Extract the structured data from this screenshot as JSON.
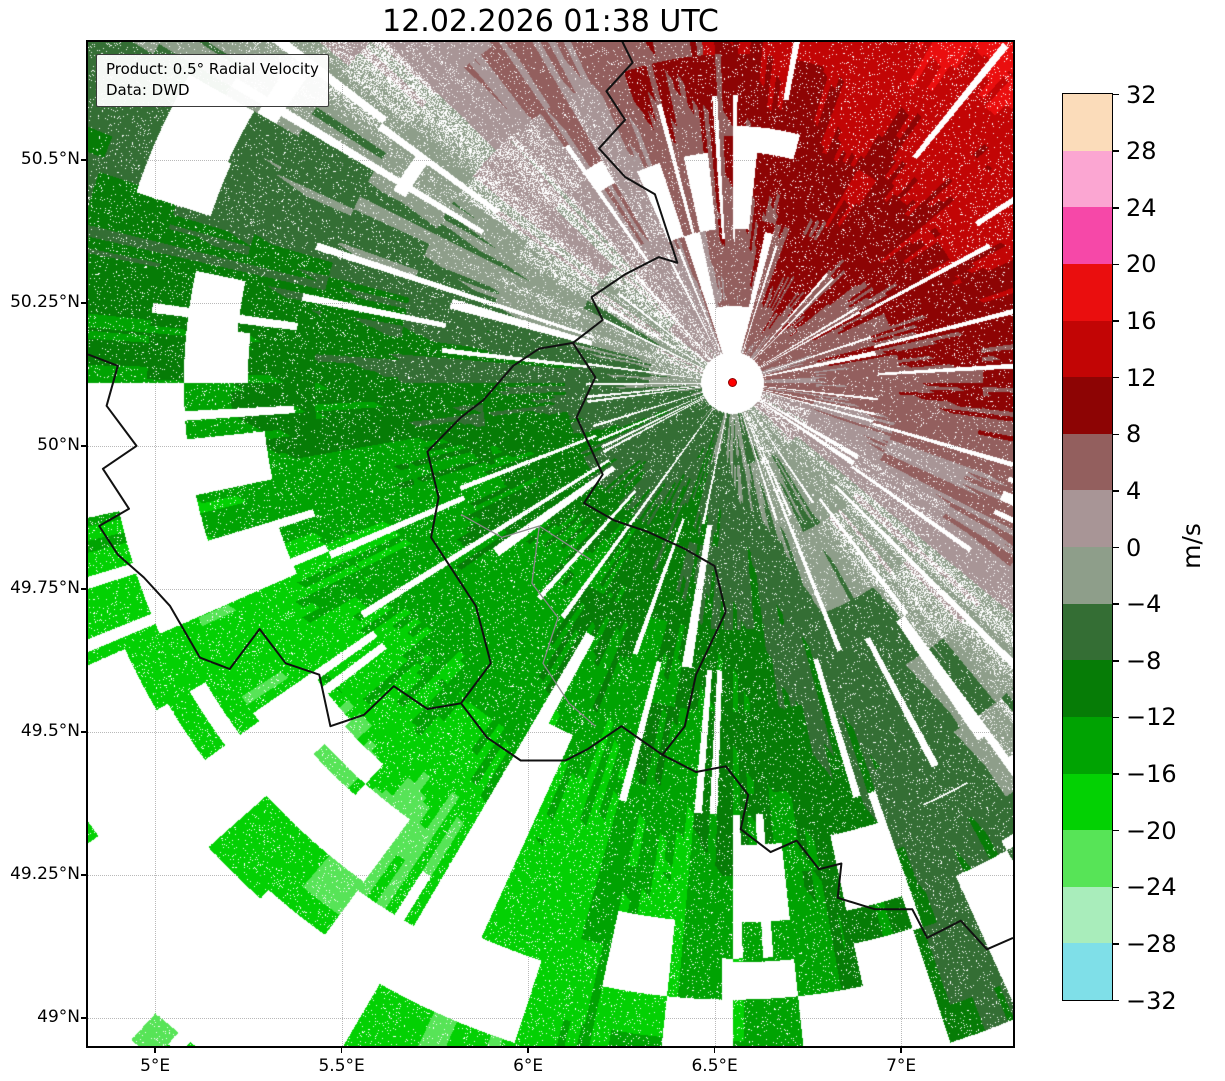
{
  "title": "12.02.2026 01:38 UTC",
  "annotation": {
    "product": "Product: 0.5° Radial Velocity",
    "source": "Data: DWD"
  },
  "map": {
    "lon_min": 4.82,
    "lon_max": 7.3,
    "lat_min": 48.951,
    "lat_max": 50.706,
    "x_ticks": [
      {
        "value": 5.0,
        "label": "5°E"
      },
      {
        "value": 5.5,
        "label": "5.5°E"
      },
      {
        "value": 6.0,
        "label": "6°E"
      },
      {
        "value": 6.5,
        "label": "6.5°E"
      },
      {
        "value": 7.0,
        "label": "7°E"
      }
    ],
    "y_ticks": [
      {
        "value": 50.5,
        "label": "50.5°N"
      },
      {
        "value": 50.25,
        "label": "50.25°N"
      },
      {
        "value": 50.0,
        "label": "50°N"
      },
      {
        "value": 49.75,
        "label": "49.75°N"
      },
      {
        "value": 49.5,
        "label": "49.5°N"
      },
      {
        "value": 49.25,
        "label": "49.25°N"
      },
      {
        "value": 49.0,
        "label": "49°N"
      }
    ],
    "borders_black": [
      [
        [
          6.12,
          50.18
        ],
        [
          6.18,
          50.12
        ],
        [
          6.13,
          50.05
        ],
        [
          6.2,
          49.95
        ],
        [
          6.15,
          49.9
        ],
        [
          6.23,
          49.87
        ],
        [
          6.32,
          49.85
        ],
        [
          6.42,
          49.82
        ],
        [
          6.5,
          49.79
        ],
        [
          6.53,
          49.71
        ],
        [
          6.45,
          49.6
        ],
        [
          6.42,
          49.51
        ],
        [
          6.36,
          49.46
        ],
        [
          6.25,
          49.51
        ],
        [
          6.16,
          49.47
        ],
        [
          6.1,
          49.45
        ],
        [
          5.98,
          49.45
        ],
        [
          5.89,
          49.49
        ],
        [
          5.82,
          49.55
        ],
        [
          5.9,
          49.62
        ],
        [
          5.86,
          49.72
        ],
        [
          5.74,
          49.84
        ],
        [
          5.76,
          49.91
        ],
        [
          5.73,
          49.99
        ],
        [
          5.82,
          50.05
        ],
        [
          5.88,
          50.08
        ],
        [
          5.96,
          50.14
        ],
        [
          6.03,
          50.17
        ],
        [
          6.12,
          50.18
        ]
      ],
      [
        [
          6.12,
          50.18
        ],
        [
          6.2,
          50.22
        ],
        [
          6.17,
          50.26
        ],
        [
          6.26,
          50.3
        ],
        [
          6.35,
          50.33
        ],
        [
          6.4,
          50.32
        ],
        [
          6.37,
          50.38
        ],
        [
          6.34,
          50.44
        ],
        [
          6.26,
          50.47
        ],
        [
          6.19,
          50.52
        ],
        [
          6.26,
          50.57
        ],
        [
          6.21,
          50.62
        ],
        [
          6.28,
          50.67
        ],
        [
          6.25,
          50.71
        ]
      ],
      [
        [
          6.36,
          49.46
        ],
        [
          6.45,
          49.43
        ],
        [
          6.53,
          49.44
        ],
        [
          6.59,
          49.39
        ],
        [
          6.57,
          49.33
        ],
        [
          6.65,
          49.29
        ],
        [
          6.72,
          49.31
        ],
        [
          6.78,
          49.26
        ],
        [
          6.84,
          49.27
        ],
        [
          6.83,
          49.21
        ],
        [
          6.93,
          49.19
        ],
        [
          7.03,
          49.19
        ],
        [
          7.07,
          49.14
        ],
        [
          7.16,
          49.17
        ],
        [
          7.23,
          49.12
        ],
        [
          7.3,
          49.14
        ]
      ],
      [
        [
          4.82,
          50.16
        ],
        [
          4.9,
          50.14
        ],
        [
          4.87,
          50.07
        ],
        [
          4.95,
          50.0
        ],
        [
          4.86,
          49.96
        ],
        [
          4.93,
          49.89
        ],
        [
          4.85,
          49.86
        ],
        [
          4.9,
          49.81
        ],
        [
          4.97,
          49.77
        ],
        [
          5.04,
          49.72
        ],
        [
          5.12,
          49.63
        ],
        [
          5.2,
          49.61
        ],
        [
          5.28,
          49.68
        ],
        [
          5.35,
          49.62
        ],
        [
          5.44,
          49.6
        ],
        [
          5.47,
          49.51
        ],
        [
          5.56,
          49.53
        ],
        [
          5.64,
          49.58
        ],
        [
          5.73,
          49.54
        ],
        [
          5.82,
          49.55
        ]
      ]
    ],
    "borders_gray": [
      [
        [
          5.82,
          49.88
        ],
        [
          5.93,
          49.84
        ],
        [
          6.03,
          49.86
        ],
        [
          6.1,
          49.83
        ],
        [
          6.17,
          49.8
        ]
      ],
      [
        [
          6.03,
          49.86
        ],
        [
          6.01,
          49.76
        ],
        [
          6.08,
          49.7
        ],
        [
          6.04,
          49.62
        ],
        [
          6.11,
          49.55
        ],
        [
          6.18,
          49.51
        ]
      ]
    ]
  },
  "colorbar": {
    "unit": "m/s",
    "min": -32,
    "max": 32,
    "step": 4,
    "tick_labels": [
      "32",
      "28",
      "24",
      "20",
      "16",
      "12",
      "8",
      "4",
      "0",
      "−4",
      "−8",
      "−12",
      "−16",
      "−20",
      "−24",
      "−28",
      "−32"
    ],
    "colors_top_to_bottom": [
      "#fbdcba",
      "#fba6d2",
      "#f648a8",
      "#ea0e0e",
      "#c20505",
      "#8d0404",
      "#935f5e",
      "#a89596",
      "#8e9e8a",
      "#346e34",
      "#067c06",
      "#00a302",
      "#03d103",
      "#57e457",
      "#a9edbb",
      "#7fdfe8"
    ]
  },
  "field": {
    "radar_lon": 6.548,
    "radar_lat": 50.11,
    "wind_toward_deg": 42,
    "max_range_km": 172,
    "marker_color": "#ff0000"
  },
  "chart_data": {
    "type": "heatmap",
    "title": "12.02.2026 01:38 UTC",
    "product": "0.5° Radial Velocity",
    "source": "DWD",
    "unit": "m/s",
    "colorbar_range": [
      -32,
      32
    ],
    "colorbar_step": 4,
    "x_axis": {
      "ticks": [
        "5°E",
        "5.5°E",
        "6°E",
        "6.5°E",
        "7°E"
      ],
      "range_deg_e": [
        4.82,
        7.3
      ]
    },
    "y_axis": {
      "ticks": [
        "50.5°N",
        "50.25°N",
        "50°N",
        "49.75°N",
        "49.5°N",
        "49.25°N",
        "49°N"
      ],
      "range_deg_n": [
        48.95,
        50.71
      ]
    },
    "radar_site": {
      "lon_e": 6.55,
      "lat_n": 50.11
    },
    "pattern": "negative (green) radial velocities southwest of radar, positive (red) northeast of radar, near-zero gray band oriented NW-SE through radar site"
  }
}
